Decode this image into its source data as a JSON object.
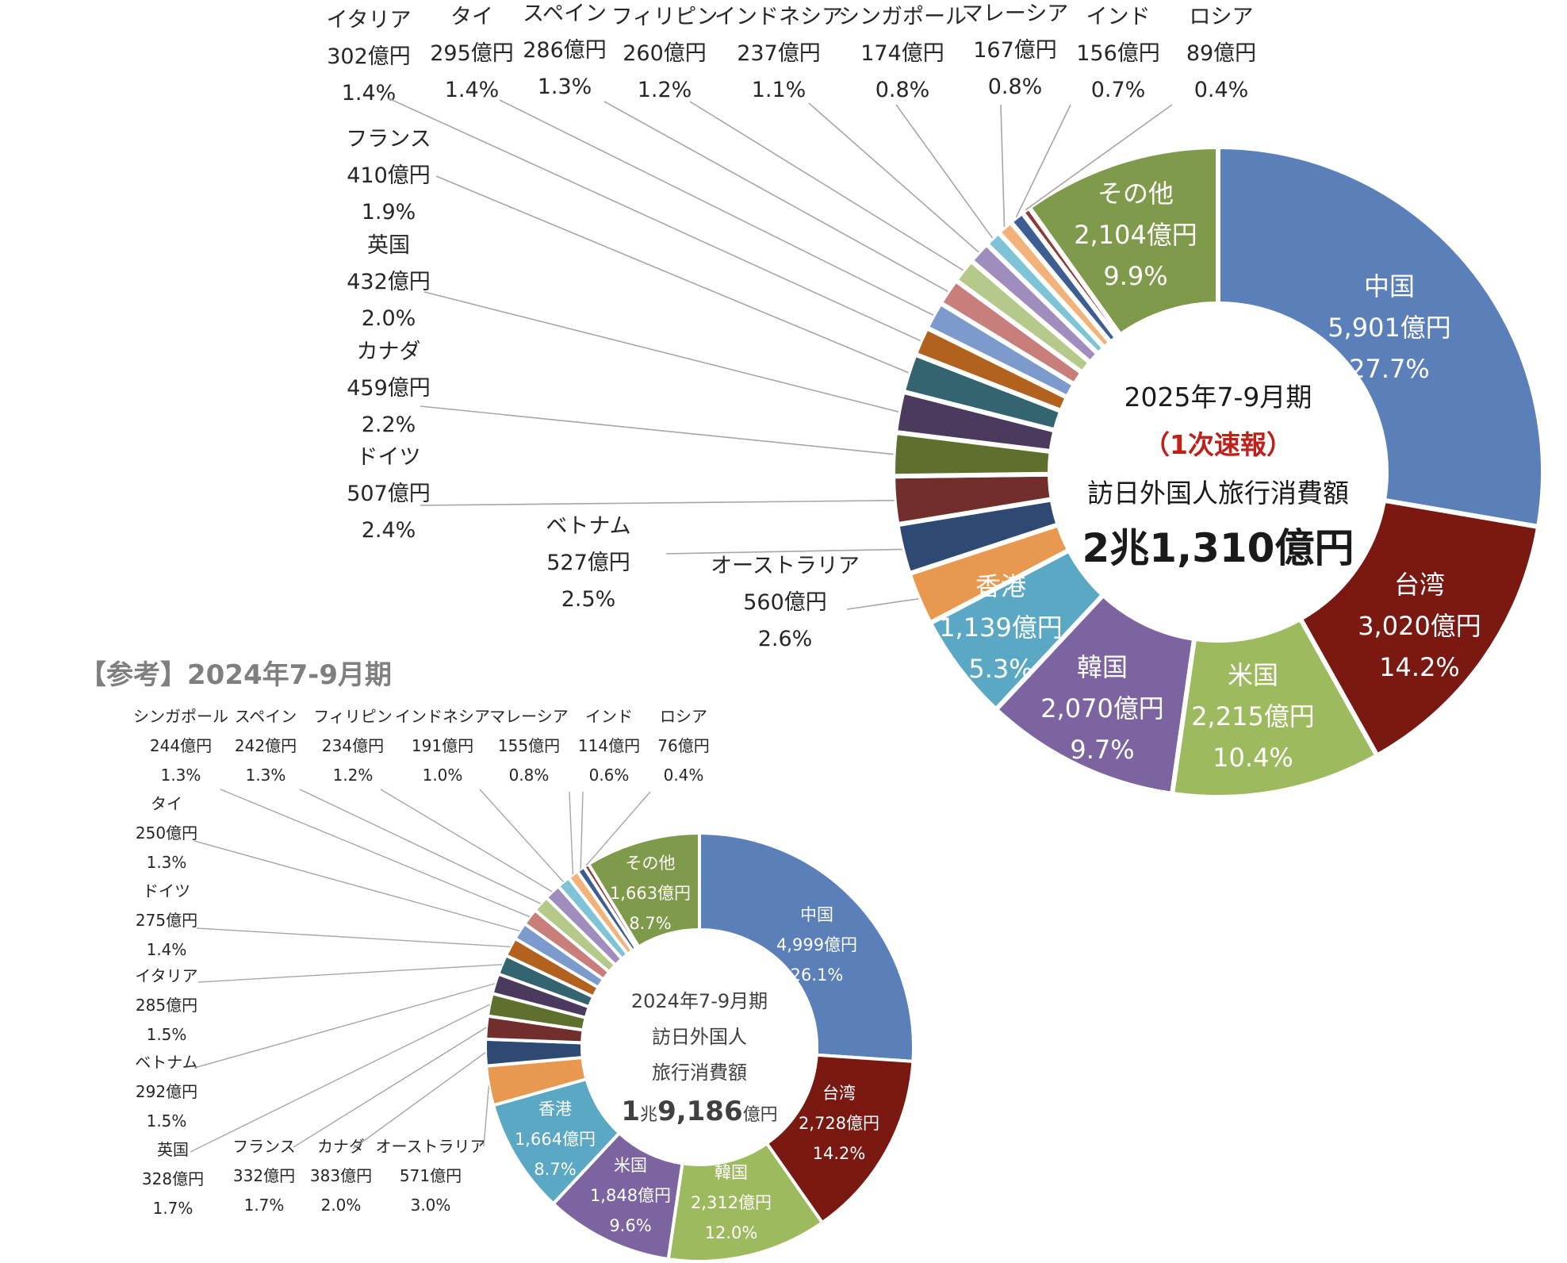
{
  "reference_title": "【参考】2024年7-9月期",
  "chart_data": [
    {
      "type": "donut",
      "name": "2025年7-9月期",
      "center": {
        "period": "2025年7-9月期",
        "note": "（1次速報）",
        "label": "訪日外国人旅行消費額",
        "total_main": "2兆1,310億円"
      },
      "note_color": "#c0201a",
      "slices": [
        {
          "name": "中国",
          "value": 5901,
          "value_label": "5,901億円",
          "pct": "27.7%",
          "color": "#5b7fb8"
        },
        {
          "name": "台湾",
          "value": 3020,
          "value_label": "3,020億円",
          "pct": "14.2%",
          "color": "#7a1812"
        },
        {
          "name": "米国",
          "value": 2215,
          "value_label": "2,215億円",
          "pct": "10.4%",
          "color": "#9dba5e"
        },
        {
          "name": "韓国",
          "value": 2070,
          "value_label": "2,070億円",
          "pct": "9.7%",
          "color": "#7c64a0"
        },
        {
          "name": "香港",
          "value": 1139,
          "value_label": "1,139億円",
          "pct": "5.3%",
          "color": "#5aa8c4"
        },
        {
          "name": "オーストラリア",
          "value": 560,
          "value_label": "560億円",
          "pct": "2.6%",
          "color": "#e8994f"
        },
        {
          "name": "ベトナム",
          "value": 527,
          "value_label": "527億円",
          "pct": "2.5%",
          "color": "#2f4a72"
        },
        {
          "name": "ドイツ",
          "value": 507,
          "value_label": "507億円",
          "pct": "2.4%",
          "color": "#722e2a"
        },
        {
          "name": "カナダ",
          "value": 459,
          "value_label": "459億円",
          "pct": "2.2%",
          "color": "#5e6f2e"
        },
        {
          "name": "英国",
          "value": 432,
          "value_label": "432億円",
          "pct": "2.0%",
          "color": "#4a3a5e"
        },
        {
          "name": "フランス",
          "value": 410,
          "value_label": "410億円",
          "pct": "1.9%",
          "color": "#356471"
        },
        {
          "name": "イタリア",
          "value": 302,
          "value_label": "302億円",
          "pct": "1.4%",
          "color": "#b2611e"
        },
        {
          "name": "タイ",
          "value": 295,
          "value_label": "295億円",
          "pct": "1.4%",
          "color": "#7c9bcc"
        },
        {
          "name": "スペイン",
          "value": 286,
          "value_label": "286億円",
          "pct": "1.3%",
          "color": "#c87e7b"
        },
        {
          "name": "フィリピン",
          "value": 260,
          "value_label": "260億円",
          "pct": "1.2%",
          "color": "#b5c98a"
        },
        {
          "name": "インドネシア",
          "value": 237,
          "value_label": "237億円",
          "pct": "1.1%",
          "color": "#9e8dbd"
        },
        {
          "name": "シンガポール",
          "value": 174,
          "value_label": "174億円",
          "pct": "0.8%",
          "color": "#7fc3d6"
        },
        {
          "name": "マレーシア",
          "value": 167,
          "value_label": "167億円",
          "pct": "0.8%",
          "color": "#f2b27a"
        },
        {
          "name": "インド",
          "value": 156,
          "value_label": "156億円",
          "pct": "0.7%",
          "color": "#3d5e93"
        },
        {
          "name": "ロシア",
          "value": 89,
          "value_label": "89億円",
          "pct": "0.4%",
          "color": "#8e3a36"
        },
        {
          "name": "その他",
          "value": 2104,
          "value_label": "2,104億円",
          "pct": "9.9%",
          "color": "#7f9a4a"
        }
      ]
    },
    {
      "type": "donut",
      "name": "2024年7-9月期",
      "center": {
        "period": "2024年7-9月期",
        "label1": "訪日外国人",
        "label2": "旅行消費額",
        "total_prefix": "1",
        "total_unit1": "兆",
        "total_num": "9,186",
        "total_unit2": "億円"
      },
      "slices": [
        {
          "name": "中国",
          "value": 4999,
          "value_label": "4,999億円",
          "pct": "26.1%",
          "color": "#5b7fb8"
        },
        {
          "name": "台湾",
          "value": 2728,
          "value_label": "2,728億円",
          "pct": "14.2%",
          "color": "#7a1812"
        },
        {
          "name": "韓国",
          "value": 2312,
          "value_label": "2,312億円",
          "pct": "12.0%",
          "color": "#9dba5e"
        },
        {
          "name": "米国",
          "value": 1848,
          "value_label": "1,848億円",
          "pct": "9.6%",
          "color": "#7c64a0"
        },
        {
          "name": "香港",
          "value": 1664,
          "value_label": "1,664億円",
          "pct": "8.7%",
          "color": "#5aa8c4"
        },
        {
          "name": "オーストラリア",
          "value": 571,
          "value_label": "571億円",
          "pct": "3.0%",
          "color": "#e8994f"
        },
        {
          "name": "カナダ",
          "value": 383,
          "value_label": "383億円",
          "pct": "2.0%",
          "color": "#2f4a72"
        },
        {
          "name": "フランス",
          "value": 332,
          "value_label": "332億円",
          "pct": "1.7%",
          "color": "#722e2a"
        },
        {
          "name": "英国",
          "value": 328,
          "value_label": "328億円",
          "pct": "1.7%",
          "color": "#5e6f2e"
        },
        {
          "name": "ベトナム",
          "value": 292,
          "value_label": "292億円",
          "pct": "1.5%",
          "color": "#4a3a5e"
        },
        {
          "name": "イタリア",
          "value": 285,
          "value_label": "285億円",
          "pct": "1.5%",
          "color": "#356471"
        },
        {
          "name": "ドイツ",
          "value": 275,
          "value_label": "275億円",
          "pct": "1.4%",
          "color": "#b2611e"
        },
        {
          "name": "タイ",
          "value": 250,
          "value_label": "250億円",
          "pct": "1.3%",
          "color": "#7c9bcc"
        },
        {
          "name": "シンガポール",
          "value": 244,
          "value_label": "244億円",
          "pct": "1.3%",
          "color": "#c87e7b"
        },
        {
          "name": "スペイン",
          "value": 242,
          "value_label": "242億円",
          "pct": "1.3%",
          "color": "#b5c98a"
        },
        {
          "name": "フィリピン",
          "value": 234,
          "value_label": "234億円",
          "pct": "1.2%",
          "color": "#9e8dbd"
        },
        {
          "name": "インドネシア",
          "value": 191,
          "value_label": "191億円",
          "pct": "1.0%",
          "color": "#7fc3d6"
        },
        {
          "name": "マレーシア",
          "value": 155,
          "value_label": "155億円",
          "pct": "0.8%",
          "color": "#f2b27a"
        },
        {
          "name": "インド",
          "value": 114,
          "value_label": "114億円",
          "pct": "0.6%",
          "color": "#3d5e93"
        },
        {
          "name": "ロシア",
          "value": 76,
          "value_label": "76億円",
          "pct": "0.4%",
          "color": "#8e3a36"
        },
        {
          "name": "その他",
          "value": 1663,
          "value_label": "1,663億円",
          "pct": "8.7%",
          "color": "#7f9a4a"
        }
      ]
    }
  ]
}
